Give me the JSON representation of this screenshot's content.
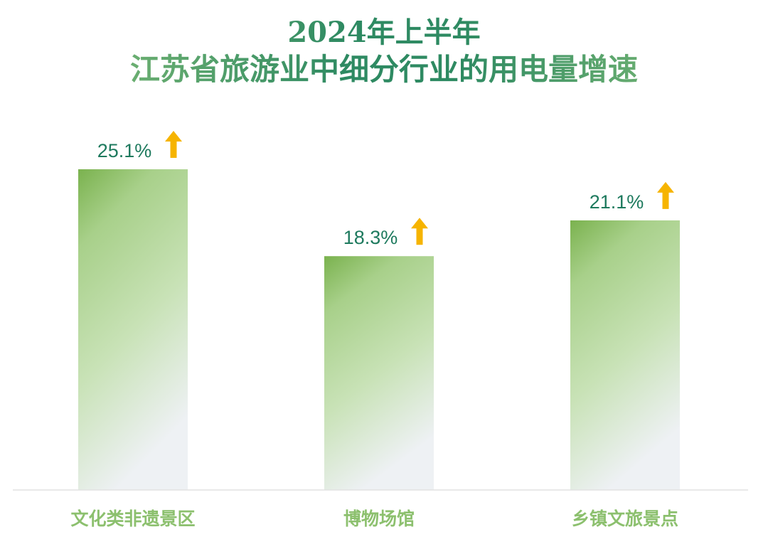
{
  "title_line1": "2024年上半年",
  "title_line2": "江苏省旅游业中细分行业的用电量增速",
  "colors": {
    "bar_top": "#7ab24e",
    "bar_mid": "#a8d08a",
    "bar_bottom": "#eef1f4",
    "value_text": "#1e7a5e",
    "arrow": "#f6b400",
    "category_text": "#8cc06e",
    "baseline": "#e2e2e2"
  },
  "chart_data": {
    "type": "bar",
    "title": "2024年上半年 江苏省旅游业中细分行业的用电量增速",
    "categories": [
      "文化类非遗景区",
      "博物场馆",
      "乡镇文旅景点"
    ],
    "values": [
      25.1,
      18.3,
      21.1
    ],
    "value_labels": [
      "25.1%",
      "18.3%",
      "21.1%"
    ],
    "unit": "%",
    "ylim": [
      0,
      30
    ],
    "grid": false,
    "legend": "none",
    "annotation_icon": "up-arrow-icon"
  }
}
